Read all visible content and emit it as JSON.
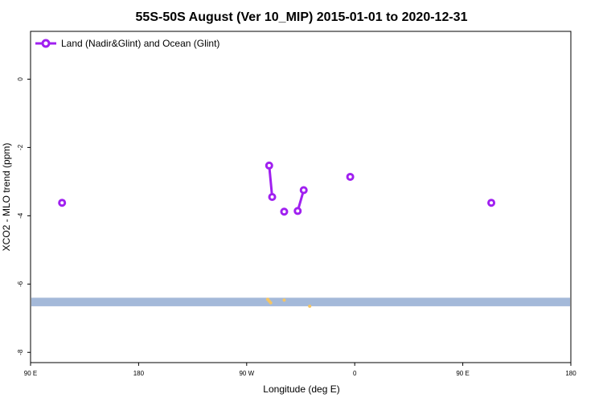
{
  "chart_data": {
    "type": "line",
    "title": "55S-50S August (Ver 10_MIP)   2015-01-01 to 2020-12-31",
    "xlabel": "Longitude (deg E)",
    "ylabel": "XCO2 - MLO trend (ppm)",
    "xlim": [
      90,
      450
    ],
    "ylim": [
      -8.3,
      1.4
    ],
    "x_ticks": [
      {
        "value": 90,
        "label": "90 E"
      },
      {
        "value": 162,
        "label": "180"
      },
      {
        "value": 234,
        "label": "90 W"
      },
      {
        "value": 306,
        "label": "0"
      },
      {
        "value": 378,
        "label": "90 E"
      },
      {
        "value": 450,
        "label": "180"
      }
    ],
    "y_ticks": [
      {
        "value": 0,
        "label": "0"
      },
      {
        "value": -2,
        "label": "-2"
      },
      {
        "value": -4,
        "label": "-4"
      },
      {
        "value": -6,
        "label": "-6"
      },
      {
        "value": -8,
        "label": "-8"
      }
    ],
    "legend": {
      "position": "top-left"
    },
    "series": [
      {
        "name": "Land (Nadir&Glint) and Ocean (Glint)",
        "color": "#a020f0",
        "segments": [
          [
            {
              "x": 111,
              "y": -3.62
            }
          ],
          [
            {
              "x": 249,
              "y": -2.53
            },
            {
              "x": 251,
              "y": -3.45
            }
          ],
          [
            {
              "x": 259,
              "y": -3.88
            }
          ],
          [
            {
              "x": 268,
              "y": -3.86
            },
            {
              "x": 272,
              "y": -3.25
            }
          ],
          [
            {
              "x": 303,
              "y": -2.86
            }
          ],
          [
            {
              "x": 397,
              "y": -3.62
            }
          ]
        ]
      }
    ],
    "band": {
      "y_top": -6.4,
      "y_bottom": -6.65,
      "color": "#a4b9d9"
    },
    "band_markers": {
      "color": "#f5c563",
      "points": [
        {
          "x": 248,
          "y": -6.45
        },
        {
          "x": 249,
          "y": -6.5
        },
        {
          "x": 250,
          "y": -6.55
        },
        {
          "x": 259,
          "y": -6.47
        },
        {
          "x": 276,
          "y": -6.65
        }
      ]
    }
  }
}
